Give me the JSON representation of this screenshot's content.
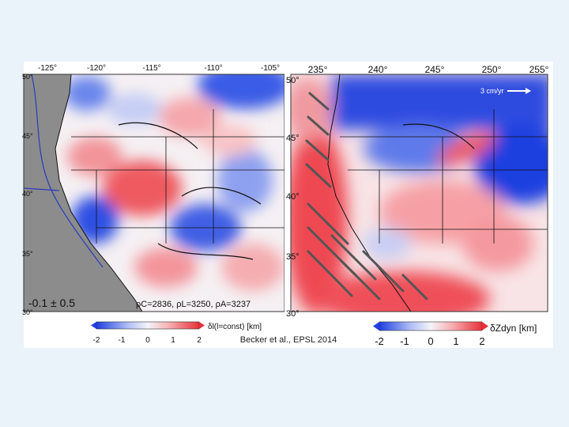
{
  "left_map": {
    "lon_ticks": [
      "-125°",
      "-120°",
      "-115°",
      "-110°",
      "-105°"
    ],
    "lat_ticks": [
      "50°",
      "45°",
      "40°",
      "35°",
      "30°"
    ],
    "stat_label": "-0.1 ± 0.5",
    "density_label": "ρC=2836, ρL=3250, ρA=3237",
    "colorbar_ticks": [
      "-2",
      "-1",
      "0",
      "1",
      "2"
    ],
    "colorbar_label": "δl(l=const) [km]"
  },
  "right_map": {
    "lon_ticks": [
      "235°",
      "240°",
      "245°",
      "250°",
      "255°"
    ],
    "lat_ticks": [
      "50°",
      "45°",
      "40°",
      "35°",
      "30°"
    ],
    "velocity_label": "3 cm/yr",
    "colorbar_ticks": [
      "-2",
      "-1",
      "0",
      "1",
      "2"
    ],
    "colorbar_label": "δZdyn [km]"
  },
  "citation": "Becker et al., EPSL 2014",
  "colors": {
    "ocean": "#8c8c8c",
    "blue_strong": "#1f3fe0",
    "blue_light": "#aebcf5",
    "white": "#f4f4fa",
    "red_light": "#f7b2b4",
    "red_strong": "#e8303a"
  }
}
